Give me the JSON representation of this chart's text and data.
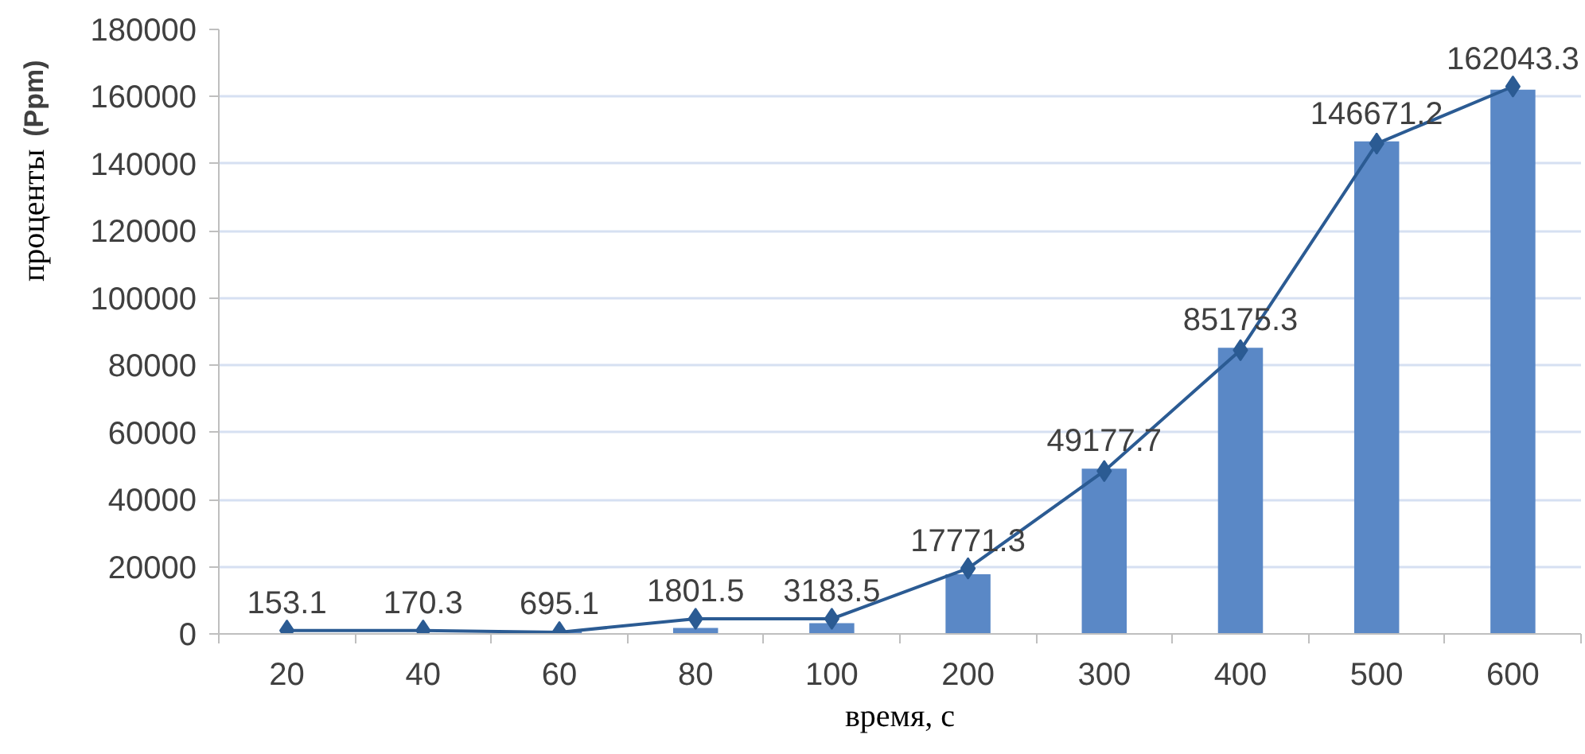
{
  "chart_data": {
    "type": "bar",
    "xlabel": "время, с",
    "ylabel": "(Ppm) проценты",
    "categories": [
      "20",
      "40",
      "60",
      "80",
      "100",
      "200",
      "300",
      "400",
      "500",
      "600"
    ],
    "series": [
      {
        "color": "#5a88c6",
        "values": [
          153.1,
          170.3,
          695.1,
          1801.5,
          3183.5,
          17771.3,
          49177.7,
          85175.3,
          146671.2,
          162043.3
        ],
        "value_labels": [
          "153.1",
          "170.3",
          "695.1",
          "1801.5",
          "3183.5",
          "17771.3",
          "49177.7",
          "85175.3",
          "146671.2",
          "162043.3"
        ]
      },
      {
        "type": "line",
        "color": "#2b5b93",
        "values": [
          1000,
          1000,
          500,
          4500,
          4500,
          19500,
          48500,
          84500,
          146000,
          163000
        ]
      }
    ],
    "ylim": [
      0,
      180000
    ],
    "yticks": [
      0,
      20000,
      40000,
      60000,
      80000,
      100000,
      120000,
      140000,
      160000,
      180000
    ],
    "grid": "y",
    "marker": "diamond",
    "line_style": "solid"
  }
}
